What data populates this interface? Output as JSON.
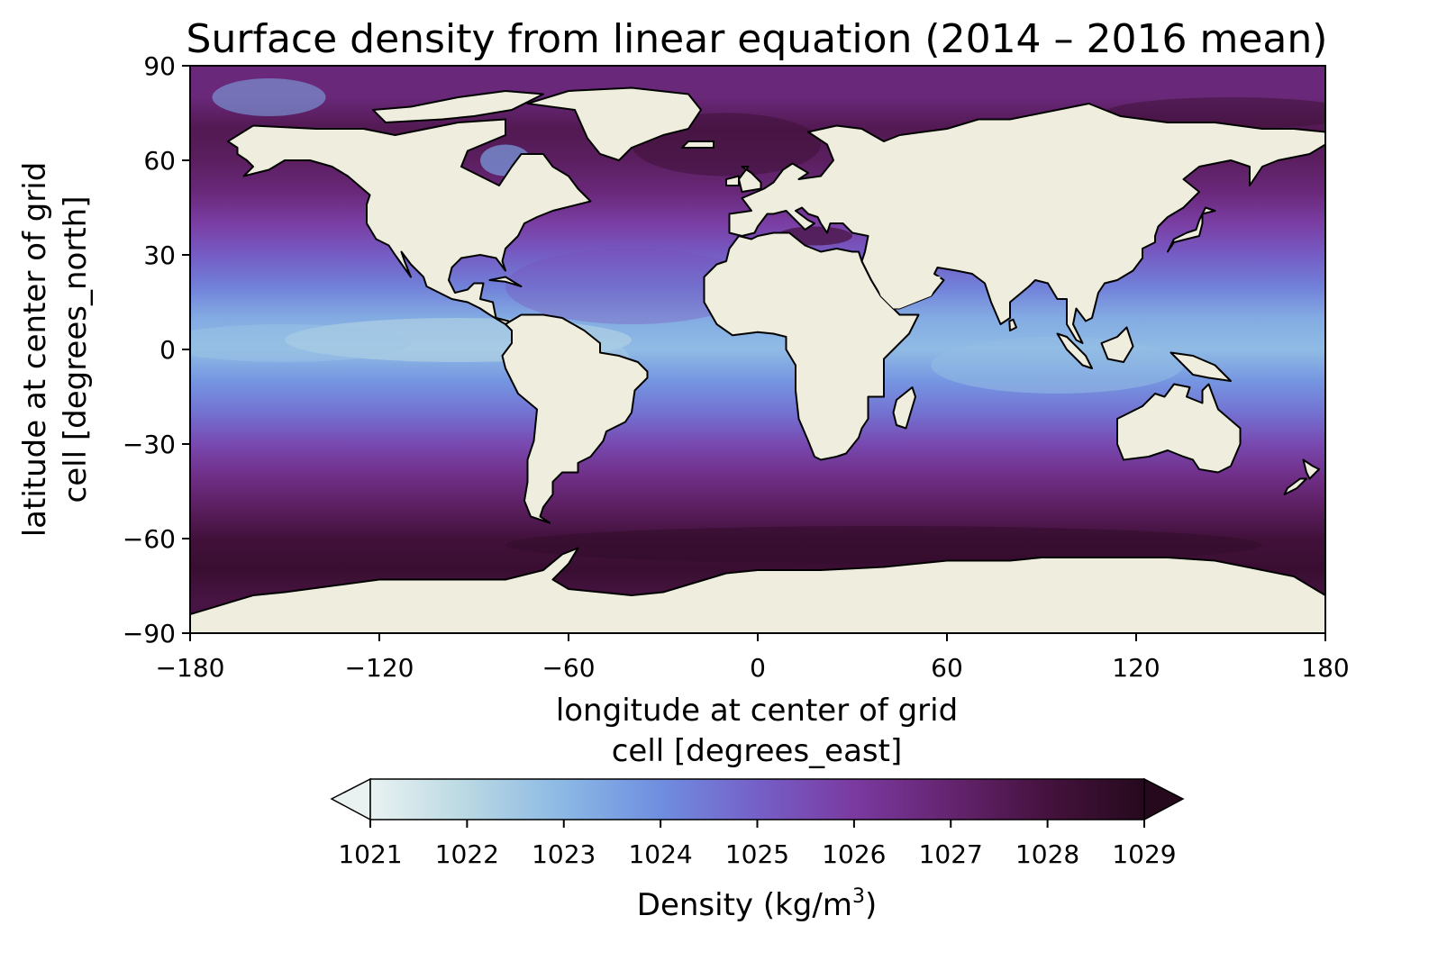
{
  "title": "Surface density from linear equation (2014 – 2016 mean)",
  "map": {
    "extent": {
      "lon": [
        -180,
        180
      ],
      "lat": [
        -90,
        90
      ]
    },
    "xlabel_line1": "longitude at center of grid",
    "xlabel_line2": "cell [degrees_east]",
    "ylabel_line1": "latitude at center of grid",
    "ylabel_line2": "cell [degrees_north]",
    "xticks": [
      "−180",
      "−120",
      "−60",
      "0",
      "60",
      "120",
      "180"
    ],
    "yticks": [
      "90",
      "60",
      "30",
      "0",
      "−30",
      "−60",
      "−90"
    ],
    "land_color": "#efedde",
    "coastline_color": "#000000"
  },
  "colorbar": {
    "label_prefix": "Density (kg/m",
    "label_sup": "3",
    "label_suffix": ")",
    "range": [
      1021,
      1029
    ],
    "extend": "both",
    "ticks": [
      "1021",
      "1022",
      "1023",
      "1024",
      "1025",
      "1026",
      "1027",
      "1028",
      "1029"
    ],
    "colormap": [
      "#e9f2f1",
      "#b9d8e3",
      "#8bb8e4",
      "#6f8ee0",
      "#7560c8",
      "#7a3aa0",
      "#65246f",
      "#45123e",
      "#26091d"
    ]
  },
  "chart_data": {
    "type": "heatmap",
    "title": "Surface density from linear equation (2014 – 2016 mean)",
    "xlabel": "longitude at center of grid cell [degrees_east]",
    "ylabel": "latitude at center of grid cell [degrees_north]",
    "xlim": [
      -180,
      180
    ],
    "ylim": [
      -90,
      90
    ],
    "value_label": "Density (kg/m3)",
    "vmin": 1021,
    "vmax": 1029,
    "zonal_profile": {
      "lat": [
        -80,
        -70,
        -60,
        -50,
        -40,
        -30,
        -20,
        -10,
        0,
        10,
        20,
        30,
        40,
        50,
        60,
        70,
        80
      ],
      "density": [
        1027.9,
        1028.4,
        1028.1,
        1027.3,
        1026.5,
        1025.6,
        1024.6,
        1023.8,
        1022.9,
        1023.3,
        1024.3,
        1025.1,
        1025.9,
        1026.8,
        1027.3,
        1027.6,
        1026.8
      ]
    }
  }
}
